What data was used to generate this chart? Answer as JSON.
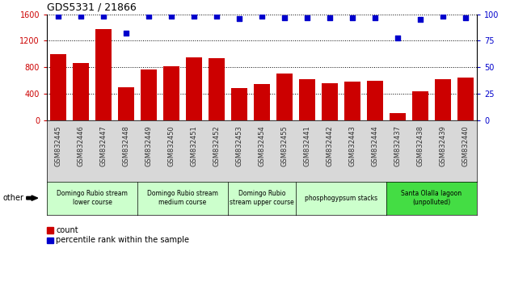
{
  "title": "GDS5331 / 21866",
  "samples": [
    "GSM832445",
    "GSM832446",
    "GSM832447",
    "GSM832448",
    "GSM832449",
    "GSM832450",
    "GSM832451",
    "GSM832452",
    "GSM832453",
    "GSM832454",
    "GSM832455",
    "GSM832441",
    "GSM832442",
    "GSM832443",
    "GSM832444",
    "GSM832437",
    "GSM832438",
    "GSM832439",
    "GSM832440"
  ],
  "counts": [
    1000,
    860,
    1380,
    500,
    760,
    820,
    950,
    940,
    490,
    540,
    700,
    620,
    560,
    580,
    590,
    110,
    430,
    620,
    640
  ],
  "percentiles": [
    98,
    98,
    98,
    82,
    98,
    98,
    98,
    98,
    96,
    98,
    97,
    97,
    97,
    97,
    97,
    78,
    95,
    98,
    97
  ],
  "bar_color": "#cc0000",
  "dot_color": "#0000cc",
  "ylim_left": [
    0,
    1600
  ],
  "ylim_right": [
    0,
    100
  ],
  "yticks_left": [
    0,
    400,
    800,
    1200,
    1600
  ],
  "yticks_right": [
    0,
    25,
    50,
    75,
    100
  ],
  "groups": [
    {
      "label": "Domingo Rubio stream\nlower course",
      "start": 0,
      "end": 4,
      "color": "#ccffcc"
    },
    {
      "label": "Domingo Rubio stream\nmedium course",
      "start": 4,
      "end": 8,
      "color": "#ccffcc"
    },
    {
      "label": "Domingo Rubio\nstream upper course",
      "start": 8,
      "end": 11,
      "color": "#ccffcc"
    },
    {
      "label": "phosphogypsum stacks",
      "start": 11,
      "end": 15,
      "color": "#ccffcc"
    },
    {
      "label": "Santa Olalla lagoon\n(unpolluted)",
      "start": 15,
      "end": 19,
      "color": "#44dd44"
    }
  ],
  "other_label": "other",
  "legend_count_label": "count",
  "legend_pct_label": "percentile rank within the sample",
  "xticklabel_color": "#333333",
  "grid_color": "black",
  "plot_bg": "#ffffff",
  "xtick_bg": "#d8d8d8"
}
